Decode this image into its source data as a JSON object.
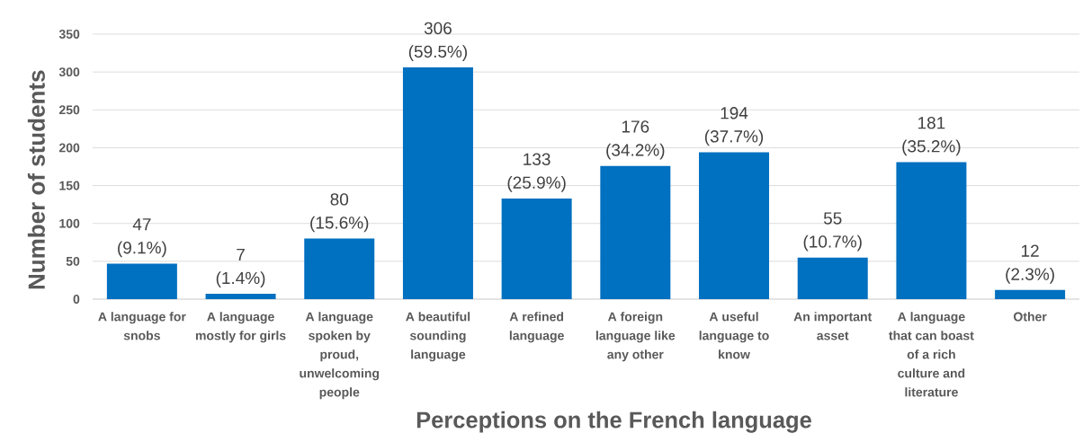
{
  "chart_data": {
    "type": "bar",
    "xlabel": "Perceptions on the French language",
    "ylabel": "Number of students",
    "categories": [
      "A language for snobs",
      "A language mostly for girls",
      "A language spoken by proud, unwelcoming people",
      "A beautiful sounding language",
      "A refined language",
      "A foreign language like any other",
      "A useful language to know",
      "An important asset",
      "A language that can boast of a rich culture and literature",
      "Other"
    ],
    "values": [
      47,
      7,
      80,
      306,
      133,
      176,
      194,
      55,
      181,
      12
    ],
    "value_labels": [
      "47 (9.1%)",
      "7 (1.4%)",
      "80 (15.6%)",
      "306 (59.5%)",
      "133 (25.9%)",
      "176 (34.2%)",
      "194 (37.7%)",
      "55 (10.7%)",
      "181 (35.2%)",
      "12 (2.3%)"
    ],
    "color": "#0070c0",
    "ylim": [
      0,
      350
    ],
    "yticks": [
      0,
      50,
      100,
      150,
      200,
      250,
      300,
      350
    ],
    "grid": "y"
  }
}
